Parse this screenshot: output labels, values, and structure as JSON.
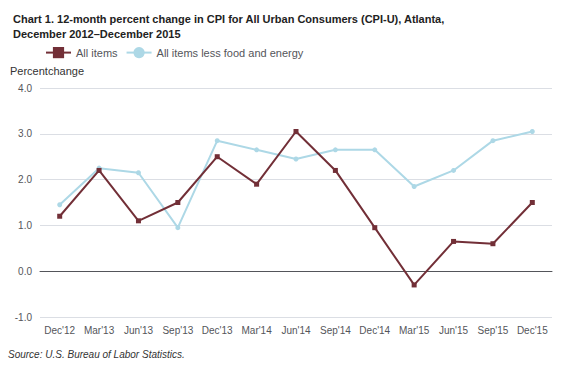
{
  "chart_data": {
    "type": "line",
    "title": "Chart 1. 12-month percent change in CPI for All Urban Consumers (CPI-U), Atlanta,\nDecember 2012–December 2015",
    "ylabel": "Percentchange",
    "annotations": [
      "Source: U.S. Bureau of Labor Statistics."
    ],
    "categories": [
      "Dec'12",
      "Mar'13",
      "Jun'13",
      "Sep'13",
      "Dec'13",
      "Mar'14",
      "Jun'14",
      "Sep'14",
      "Dec'14",
      "Mar'15",
      "Jun'15",
      "Sep'15",
      "Dec'15"
    ],
    "series": [
      {
        "name": "All items",
        "color": "#722F37",
        "marker": "square",
        "values": [
          1.2,
          2.2,
          1.1,
          1.5,
          2.5,
          1.9,
          3.05,
          2.2,
          0.95,
          -0.3,
          0.65,
          0.6,
          1.5
        ]
      },
      {
        "name": "All items less food and energy",
        "color": "#ADD8E6",
        "marker": "circle",
        "values": [
          1.45,
          2.25,
          2.15,
          0.95,
          2.85,
          2.65,
          2.45,
          2.65,
          2.65,
          1.85,
          2.2,
          2.85,
          3.05
        ]
      }
    ],
    "ylim": [
      -1.0,
      4.0
    ],
    "yticks": [
      {
        "value": -1.0,
        "label": "-1.0"
      },
      {
        "value": 0.0,
        "label": "0.0"
      },
      {
        "value": 1.0,
        "label": "1.0"
      },
      {
        "value": 2.0,
        "label": "2.0"
      },
      {
        "value": 3.0,
        "label": "3.0"
      },
      {
        "value": 4.0,
        "label": "4.0"
      }
    ],
    "grid": true,
    "legend": "upper left"
  }
}
